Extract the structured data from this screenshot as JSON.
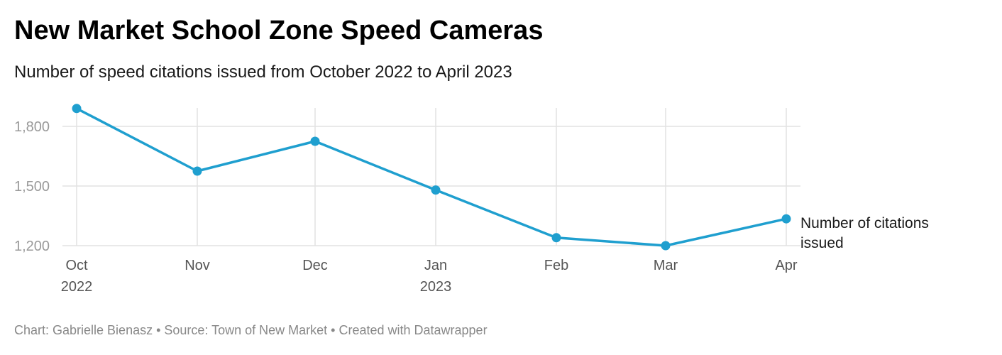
{
  "chart_data": {
    "type": "line",
    "title": "New Market School Zone Speed Cameras",
    "subtitle": "Number of speed citations issued from October 2022 to April 2023",
    "categories": [
      "Oct",
      "Nov",
      "Dec",
      "Jan",
      "Feb",
      "Mar",
      "Apr"
    ],
    "category_sublabels": [
      "2022",
      "",
      "",
      "2023",
      "",
      "",
      ""
    ],
    "y_ticks": [
      1200,
      1500,
      1800
    ],
    "y_tick_labels": [
      "1,200",
      "1,500",
      "1,800"
    ],
    "ylim": [
      1200,
      1800
    ],
    "series": [
      {
        "name": "Number of citations issued",
        "name_lines": [
          "Number of citations",
          "issued"
        ],
        "values": [
          1890,
          1575,
          1725,
          1480,
          1240,
          1200,
          1335
        ]
      }
    ],
    "grid": true,
    "legend": "direct-label-right",
    "line_color": "#1f9fcf"
  },
  "footer": "Chart: Gabrielle Bienasz • Source: Town of New Market • Created with Datawrapper"
}
